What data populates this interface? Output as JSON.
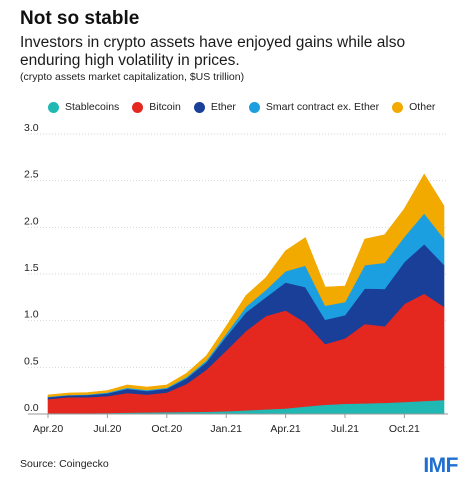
{
  "header": {
    "title": "Not so stable",
    "subtitle": "Investors in crypto assets have enjoyed gains while also enduring high volatility in prices.",
    "units": "(crypto assets market capitalization, $US trillion)"
  },
  "footer": {
    "source": "Source: Coingecko",
    "logo": "IMF"
  },
  "chart_data": {
    "type": "area",
    "stacked": true,
    "x": [
      "2020-04",
      "2020-05",
      "2020-06",
      "2020-07",
      "2020-08",
      "2020-09",
      "2020-10",
      "2020-11",
      "2020-12",
      "2021-01",
      "2021-02",
      "2021-03",
      "2021-04",
      "2021-05",
      "2021-06",
      "2021-07",
      "2021-08",
      "2021-09",
      "2021-10",
      "2021-11",
      "2021-12"
    ],
    "x_ticks": [
      "Apr.20",
      "Jul.20",
      "Oct.20",
      "Jan.21",
      "Apr.21",
      "Jul.21",
      "Oct.21"
    ],
    "y_ticks": [
      "0.0",
      "0.5",
      "1.0",
      "1.5",
      "2.0",
      "2.5",
      "3.0"
    ],
    "ylim": [
      0,
      3.0
    ],
    "legend_position": "top",
    "grid": "horizontal",
    "series": [
      {
        "name": "Stablecoins",
        "color": "#1fb8b3",
        "values": [
          0.01,
          0.01,
          0.01,
          0.012,
          0.015,
          0.018,
          0.02,
          0.022,
          0.025,
          0.03,
          0.04,
          0.05,
          0.06,
          0.08,
          0.1,
          0.11,
          0.115,
          0.12,
          0.13,
          0.14,
          0.15
        ]
      },
      {
        "name": "Bitcoin",
        "color": "#e42820",
        "values": [
          0.15,
          0.17,
          0.17,
          0.18,
          0.21,
          0.19,
          0.21,
          0.3,
          0.45,
          0.65,
          0.85,
          1.0,
          1.05,
          0.9,
          0.65,
          0.7,
          0.85,
          0.82,
          1.05,
          1.15,
          1.0
        ]
      },
      {
        "name": "Ether",
        "color": "#1a3f99",
        "values": [
          0.02,
          0.02,
          0.025,
          0.03,
          0.045,
          0.04,
          0.042,
          0.06,
          0.08,
          0.15,
          0.2,
          0.2,
          0.3,
          0.38,
          0.26,
          0.25,
          0.38,
          0.4,
          0.45,
          0.53,
          0.45
        ]
      },
      {
        "name": "Smart contract ex. Ether",
        "color": "#1c9fe0",
        "values": [
          0.005,
          0.005,
          0.005,
          0.008,
          0.012,
          0.01,
          0.01,
          0.015,
          0.02,
          0.03,
          0.06,
          0.08,
          0.12,
          0.23,
          0.15,
          0.14,
          0.25,
          0.28,
          0.27,
          0.33,
          0.28
        ]
      },
      {
        "name": "Other",
        "color": "#f2a900",
        "values": [
          0.02,
          0.02,
          0.02,
          0.022,
          0.03,
          0.03,
          0.03,
          0.04,
          0.05,
          0.08,
          0.12,
          0.13,
          0.22,
          0.3,
          0.2,
          0.17,
          0.28,
          0.3,
          0.3,
          0.42,
          0.35
        ]
      }
    ]
  }
}
